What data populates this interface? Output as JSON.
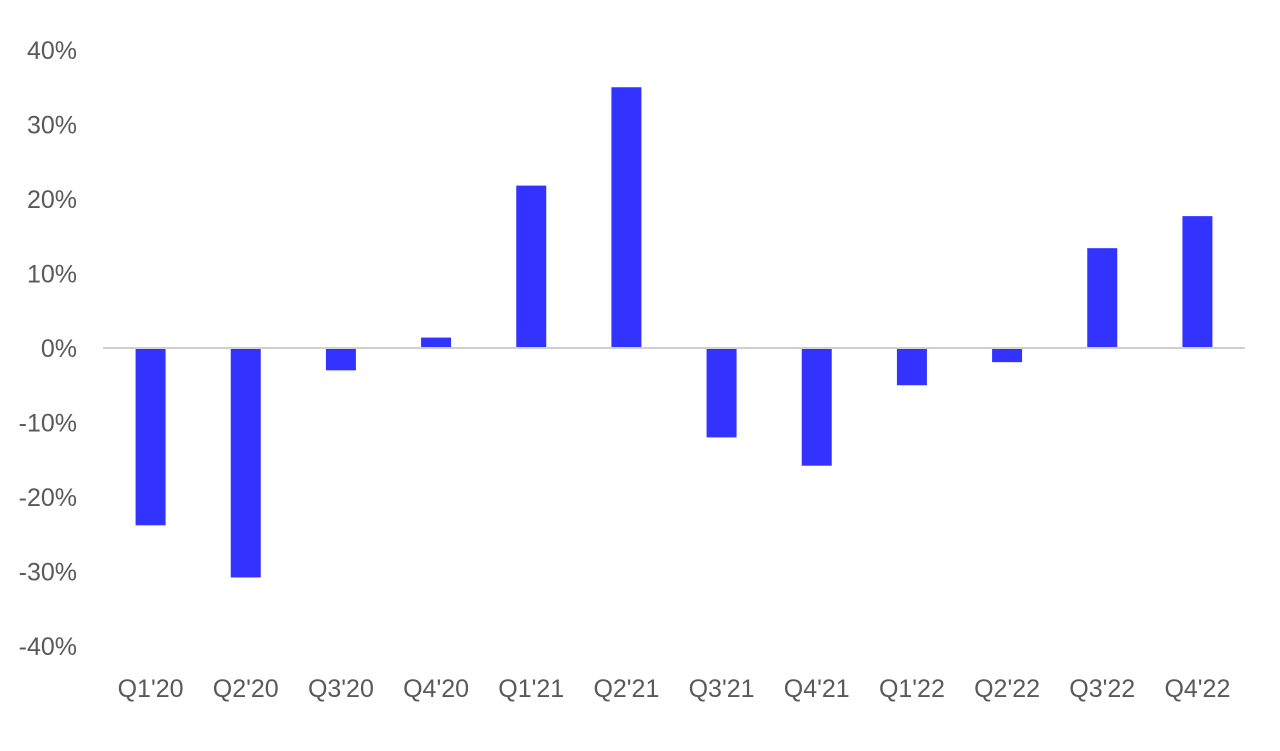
{
  "chart_data": {
    "type": "bar",
    "title": "",
    "xlabel": "",
    "ylabel": "",
    "categories": [
      "Q1'20",
      "Q2'20",
      "Q3'20",
      "Q4'20",
      "Q1'21",
      "Q2'21",
      "Q3'21",
      "Q4'21",
      "Q1'22",
      "Q2'22",
      "Q3'22",
      "Q4'22"
    ],
    "series": [
      {
        "values": [
          -23.8,
          -30.8,
          -3.0,
          1.4,
          21.8,
          35.0,
          -12.0,
          -15.8,
          -5.0,
          -1.9,
          13.4,
          17.7
        ]
      }
    ],
    "ylim": [
      -40,
      40
    ],
    "yticks": [
      40,
      30,
      20,
      10,
      0,
      -10,
      -20,
      -30,
      -40
    ],
    "ytick_labels": [
      "40%",
      "30%",
      "20%",
      "10%",
      "0%",
      "-10%",
      "-20%",
      "-30%",
      "-40%"
    ],
    "grid": false,
    "legend": "none",
    "colors": {
      "bar": "#3333ff",
      "zero_line": "#d0d0d0",
      "tick_text": "#595959"
    }
  }
}
